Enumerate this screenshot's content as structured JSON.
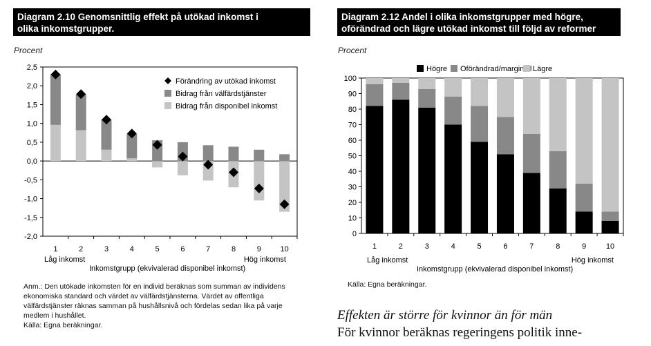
{
  "left": {
    "title_line1": "Diagram 2.10 Genomsnittlig effekt på utökad inkomst i",
    "title_line2": "olika inkomstgrupper.",
    "unit": "Procent",
    "low_label": "Låg inkomst",
    "high_label": "Hög inkomst",
    "axis_title": "Inkomstgrupp (ekvivalerad disponibel inkomst)",
    "note_lines": [
      "Anm.: Den utökade inkomsten för en individ beräknas som summan av individens",
      "ekonomiska standard och värdet av välfärdstjänsterna. Värdet av offentliga",
      "välfärdstjänster räknas samman på hushållsnivå och fördelas sedan lika på varje",
      "medlem i hushållet.",
      "Källa: Egna beräkningar."
    ]
  },
  "right": {
    "title_line1": "Diagram 2.12 Andel i olika inkomstgrupper med högre,",
    "title_line2": "oförändrad och lägre utökad inkomst till följd av reformer",
    "unit": "Procent",
    "low_label": "Låg inkomst",
    "high_label": "Hög inkomst",
    "axis_title": "Inkomstgrupp (ekvivalerad disponibel inkomst)",
    "source": "Källa: Egna beräkningar."
  },
  "text": {
    "heading": "Effekten är större för kvinnor än för män",
    "body": "För kvinnor beräknas regeringens politik inne-"
  },
  "colors": {
    "welfare": "#888888",
    "disposable": "#c4c4c4",
    "marker": "#000000",
    "higher": "#000000",
    "unchanged": "#888888",
    "lower": "#c4c4c4"
  },
  "chart_data": [
    {
      "type": "bar",
      "title": "Diagram 2.10 Genomsnittlig effekt på utökad inkomst i olika inkomstgrupper.",
      "ylabel": "Procent",
      "xlabel": "Inkomstgrupp (ekvivalerad disponibel inkomst)",
      "categories": [
        "1",
        "2",
        "3",
        "4",
        "5",
        "6",
        "7",
        "8",
        "9",
        "10"
      ],
      "ylim": [
        -2.0,
        2.5
      ],
      "yticks": [
        "2,5",
        "2,0",
        "1,5",
        "1,0",
        "0,5",
        "0,0",
        "-0,5",
        "-1,0",
        "-1,5",
        "-2,0"
      ],
      "series": [
        {
          "name": "Förändring av utökad inkomst",
          "kind": "marker",
          "values": [
            2.3,
            1.78,
            1.1,
            0.73,
            0.43,
            0.12,
            -0.1,
            -0.3,
            -0.73,
            -1.15
          ]
        },
        {
          "name": "Bidrag från välfärdstjänster",
          "kind": "bar",
          "values": [
            1.35,
            0.95,
            0.8,
            0.65,
            0.55,
            0.5,
            0.42,
            0.38,
            0.3,
            0.18
          ]
        },
        {
          "name": "Bidrag från disponibel inkomst",
          "kind": "bar",
          "values": [
            0.96,
            0.82,
            0.3,
            0.07,
            -0.17,
            -0.38,
            -0.52,
            -0.7,
            -1.05,
            -1.35
          ]
        }
      ],
      "legend": "top-right"
    },
    {
      "type": "bar",
      "stacked": true,
      "title": "Diagram 2.12 Andel i olika inkomstgrupper med högre, oförändrad och lägre utökad inkomst till följd av reformer",
      "ylabel": "Procent",
      "xlabel": "Inkomstgrupp (ekvivalerad disponibel inkomst)",
      "categories": [
        "1",
        "2",
        "3",
        "4",
        "5",
        "6",
        "7",
        "8",
        "9",
        "10"
      ],
      "ylim": [
        0,
        100
      ],
      "yticks": [
        "100",
        "90",
        "80",
        "70",
        "60",
        "50",
        "40",
        "30",
        "20",
        "10",
        "0"
      ],
      "series": [
        {
          "name": "Högre",
          "values": [
            82,
            86,
            81,
            70,
            59,
            51,
            39,
            29,
            14,
            8
          ]
        },
        {
          "name": "Oförändrad/marginell",
          "values": [
            14,
            11,
            12,
            18,
            23,
            24,
            25,
            24,
            18,
            6
          ]
        },
        {
          "name": "Lägre",
          "values": [
            4,
            3,
            7,
            12,
            18,
            25,
            36,
            47,
            68,
            86
          ]
        }
      ],
      "legend": "top"
    }
  ]
}
